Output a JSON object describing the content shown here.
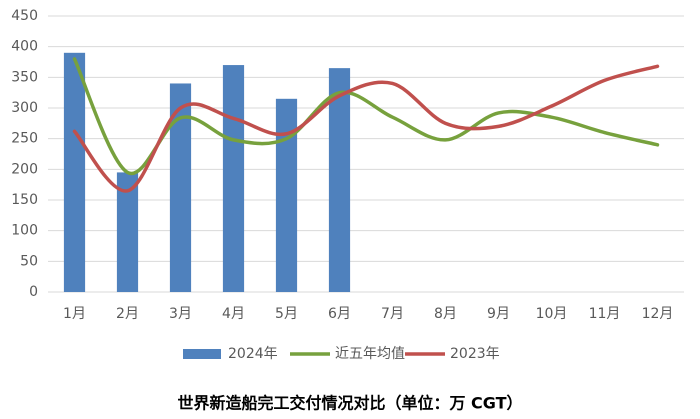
{
  "chart_data": {
    "type": "bar",
    "title": "世界新造船完工交付情况对比（单位：万 CGT）",
    "categories": [
      "1月",
      "2月",
      "3月",
      "4月",
      "5月",
      "6月",
      "7月",
      "8月",
      "9月",
      "10月",
      "11月",
      "12月"
    ],
    "series": [
      {
        "name": "2024年",
        "type": "bar",
        "color": "#4f81bd",
        "values": [
          390,
          195,
          340,
          370,
          315,
          365,
          null,
          null,
          null,
          null,
          null,
          null
        ]
      },
      {
        "name": "近五年均值",
        "type": "line",
        "color": "#77a13d",
        "values": [
          380,
          195,
          284,
          248,
          250,
          325,
          285,
          248,
          292,
          285,
          260,
          240
        ]
      },
      {
        "name": "2023年",
        "type": "line",
        "color": "#c0504d",
        "values": [
          262,
          165,
          300,
          283,
          258,
          320,
          340,
          275,
          270,
          303,
          345,
          368
        ]
      }
    ],
    "ylim": [
      0,
      450
    ],
    "yticks": [
      0,
      50,
      100,
      150,
      200,
      250,
      300,
      350,
      400,
      450
    ],
    "grid": true,
    "legend": "bottom"
  }
}
